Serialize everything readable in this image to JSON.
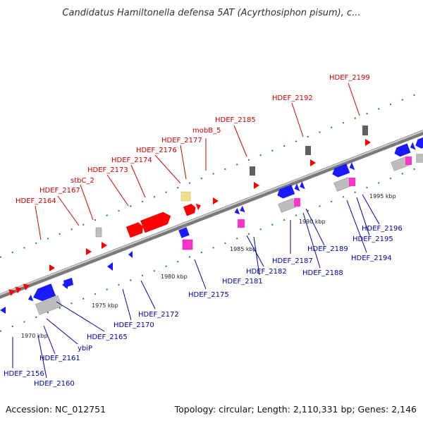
{
  "title": "Candidatus Hamiltonella defensa 5AT (Acyrthosiphon pisum), c...",
  "footer": {
    "accession": "Accession: NC_012751",
    "topology": "Topology: circular; Length: 2,110,331 bp; Genes: 2,146"
  },
  "colors": {
    "red": "#ff0000",
    "blue": "#1a1aff",
    "gray": "#bdbdbd",
    "dark_gray": "#606060",
    "pink": "#ff33cc",
    "khaki": "#f0e08a",
    "red_label": "#cc0000",
    "blue_label": "#0000aa",
    "tick_green": "#228822"
  },
  "scale_labels": [
    "1970 kbp",
    "1975 kbp",
    "1980 kbp",
    "1985 kbp",
    "1990 kbp",
    "1995 kbp"
  ],
  "top_labels": [
    "HDEF_2164",
    "HDEF_2167",
    "stbC_2",
    "HDEF_2173",
    "HDEF_2174",
    "HDEF_2176",
    "HDEF_2177",
    "mobB_5",
    "HDEF_2185",
    "HDEF_2192",
    "HDEF_2199"
  ],
  "bottom_labels": [
    "HDEF_2156",
    "HDEF_2160",
    "HDEF_2161",
    "ybiP",
    "HDEF_2165",
    "HDEF_2170",
    "HDEF_2172",
    "HDEF_2175",
    "HDEF_2181",
    "HDEF_2182",
    "HDEF_2187",
    "HDEF_2188",
    "HDEF_2189",
    "HDEF_2194",
    "HDEF_2195",
    "HDEF_2196"
  ]
}
